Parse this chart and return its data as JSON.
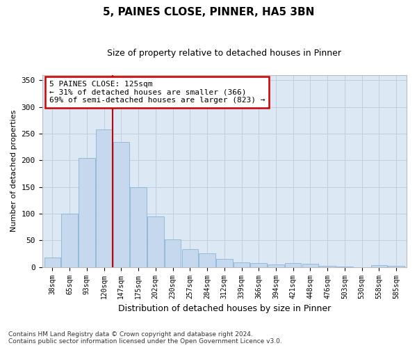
{
  "title": "5, PAINES CLOSE, PINNER, HA5 3BN",
  "subtitle": "Size of property relative to detached houses in Pinner",
  "xlabel": "Distribution of detached houses by size in Pinner",
  "ylabel": "Number of detached properties",
  "categories": [
    "38sqm",
    "65sqm",
    "93sqm",
    "120sqm",
    "147sqm",
    "175sqm",
    "202sqm",
    "230sqm",
    "257sqm",
    "284sqm",
    "312sqm",
    "339sqm",
    "366sqm",
    "394sqm",
    "421sqm",
    "448sqm",
    "476sqm",
    "503sqm",
    "530sqm",
    "558sqm",
    "585sqm"
  ],
  "values": [
    18,
    100,
    205,
    258,
    235,
    149,
    95,
    52,
    34,
    26,
    15,
    9,
    7,
    5,
    7,
    6,
    2,
    1,
    0,
    3,
    2
  ],
  "bar_color": "#c5d8ee",
  "bar_edgecolor": "#7aadcf",
  "grid_color": "#c0cede",
  "background_color": "#dce9f5",
  "ylim": [
    0,
    360
  ],
  "yticks": [
    0,
    50,
    100,
    150,
    200,
    250,
    300,
    350
  ],
  "annotation_box_text": "5 PAINES CLOSE: 125sqm\n← 31% of detached houses are smaller (366)\n69% of semi-detached houses are larger (823) →",
  "annotation_box_color": "#ffffff",
  "annotation_box_edgecolor": "#cc0000",
  "footer": "Contains HM Land Registry data © Crown copyright and database right 2024.\nContains public sector information licensed under the Open Government Licence v3.0.",
  "vline_color": "#cc0000",
  "vline_x_index": 3.0
}
